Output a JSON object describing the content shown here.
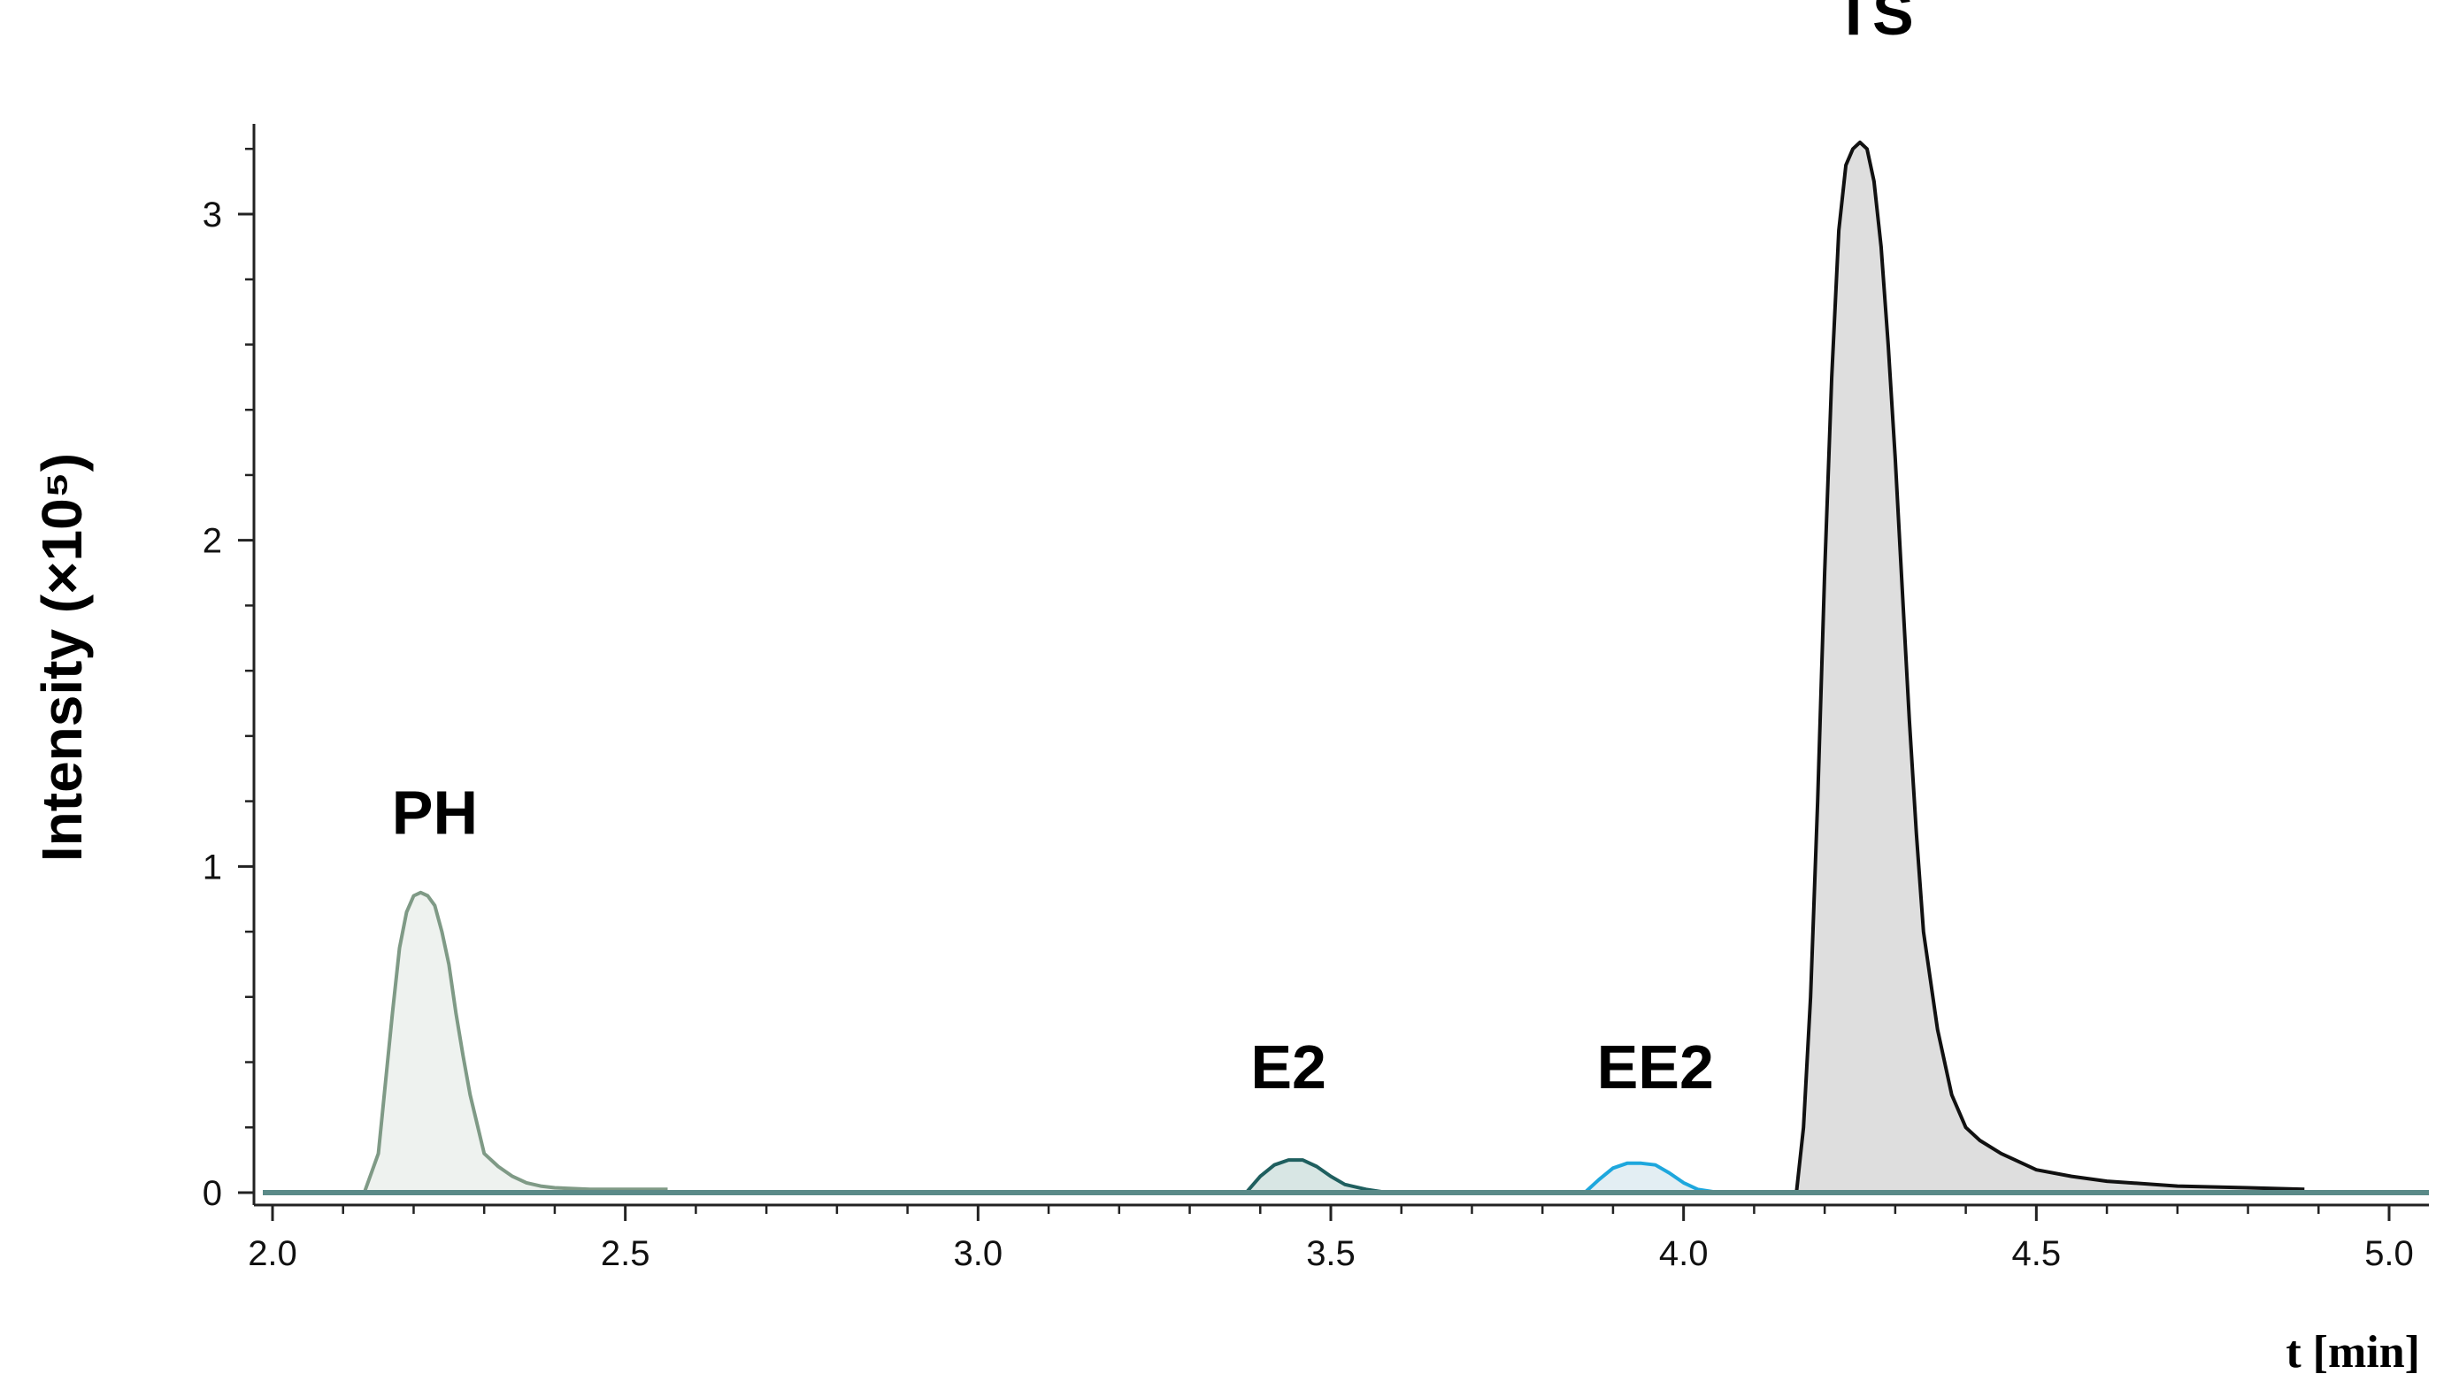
{
  "chart_data": {
    "type": "area",
    "xlabel": "t [min]",
    "ylabel": "Intensity (×10⁵)",
    "xlim": [
      2.0,
      5.05
    ],
    "ylim": [
      0,
      3.3
    ],
    "xticks": [
      "2.0",
      "2.5",
      "3.0",
      "3.5",
      "4.0",
      "4.5",
      "5.0"
    ],
    "yticks": [
      "0",
      "1",
      "2",
      "3"
    ],
    "grid": false,
    "baseline_color": "#5a8a88",
    "series": [
      {
        "name": "PH",
        "line_color": "#7f9a86",
        "fill_color": "#eef2ef",
        "x": [
          2.13,
          2.15,
          2.17,
          2.18,
          2.19,
          2.2,
          2.21,
          2.22,
          2.23,
          2.24,
          2.25,
          2.26,
          2.27,
          2.28,
          2.3,
          2.32,
          2.34,
          2.36,
          2.38,
          2.4,
          2.45,
          2.5,
          2.56
        ],
        "y": [
          0.0,
          0.12,
          0.55,
          0.75,
          0.86,
          0.91,
          0.92,
          0.91,
          0.88,
          0.8,
          0.7,
          0.55,
          0.42,
          0.3,
          0.12,
          0.08,
          0.05,
          0.03,
          0.02,
          0.015,
          0.01,
          0.01,
          0.01
        ]
      },
      {
        "name": "E2",
        "line_color": "#1f5f5f",
        "fill_color": "#d8e6e4",
        "x": [
          3.38,
          3.4,
          3.42,
          3.44,
          3.45,
          3.46,
          3.48,
          3.5,
          3.52,
          3.55,
          3.58
        ],
        "y": [
          0.0,
          0.05,
          0.085,
          0.1,
          0.1,
          0.1,
          0.08,
          0.05,
          0.025,
          0.01,
          0.0
        ]
      },
      {
        "name": "EE2",
        "line_color": "#1ea7dd",
        "fill_color": "#e3eef3",
        "x": [
          3.86,
          3.88,
          3.9,
          3.92,
          3.94,
          3.96,
          3.98,
          4.0,
          4.02,
          4.05
        ],
        "y": [
          0.0,
          0.04,
          0.075,
          0.09,
          0.09,
          0.085,
          0.06,
          0.03,
          0.01,
          0.0
        ]
      },
      {
        "name": "TS",
        "line_color": "#111111",
        "fill_color": "#dedede",
        "x": [
          4.16,
          4.17,
          4.18,
          4.19,
          4.2,
          4.21,
          4.22,
          4.23,
          4.24,
          4.25,
          4.26,
          4.27,
          4.28,
          4.29,
          4.3,
          4.31,
          4.32,
          4.33,
          4.34,
          4.36,
          4.38,
          4.4,
          4.42,
          4.45,
          4.48,
          4.5,
          4.55,
          4.6,
          4.7,
          4.8,
          4.88
        ],
        "y": [
          0.0,
          0.2,
          0.6,
          1.2,
          1.9,
          2.5,
          2.95,
          3.15,
          3.2,
          3.22,
          3.2,
          3.1,
          2.9,
          2.6,
          2.25,
          1.85,
          1.45,
          1.1,
          0.8,
          0.5,
          0.3,
          0.2,
          0.16,
          0.12,
          0.09,
          0.07,
          0.05,
          0.035,
          0.02,
          0.015,
          0.01
        ]
      }
    ],
    "peak_labels": [
      {
        "text": "PH",
        "x": 2.23,
        "y": 1.1
      },
      {
        "text": "E2",
        "x": 3.44,
        "y": 0.32
      },
      {
        "text": "EE2",
        "x": 3.96,
        "y": 0.32
      },
      {
        "text": "TS",
        "x": 4.27,
        "y": 3.55
      }
    ]
  }
}
